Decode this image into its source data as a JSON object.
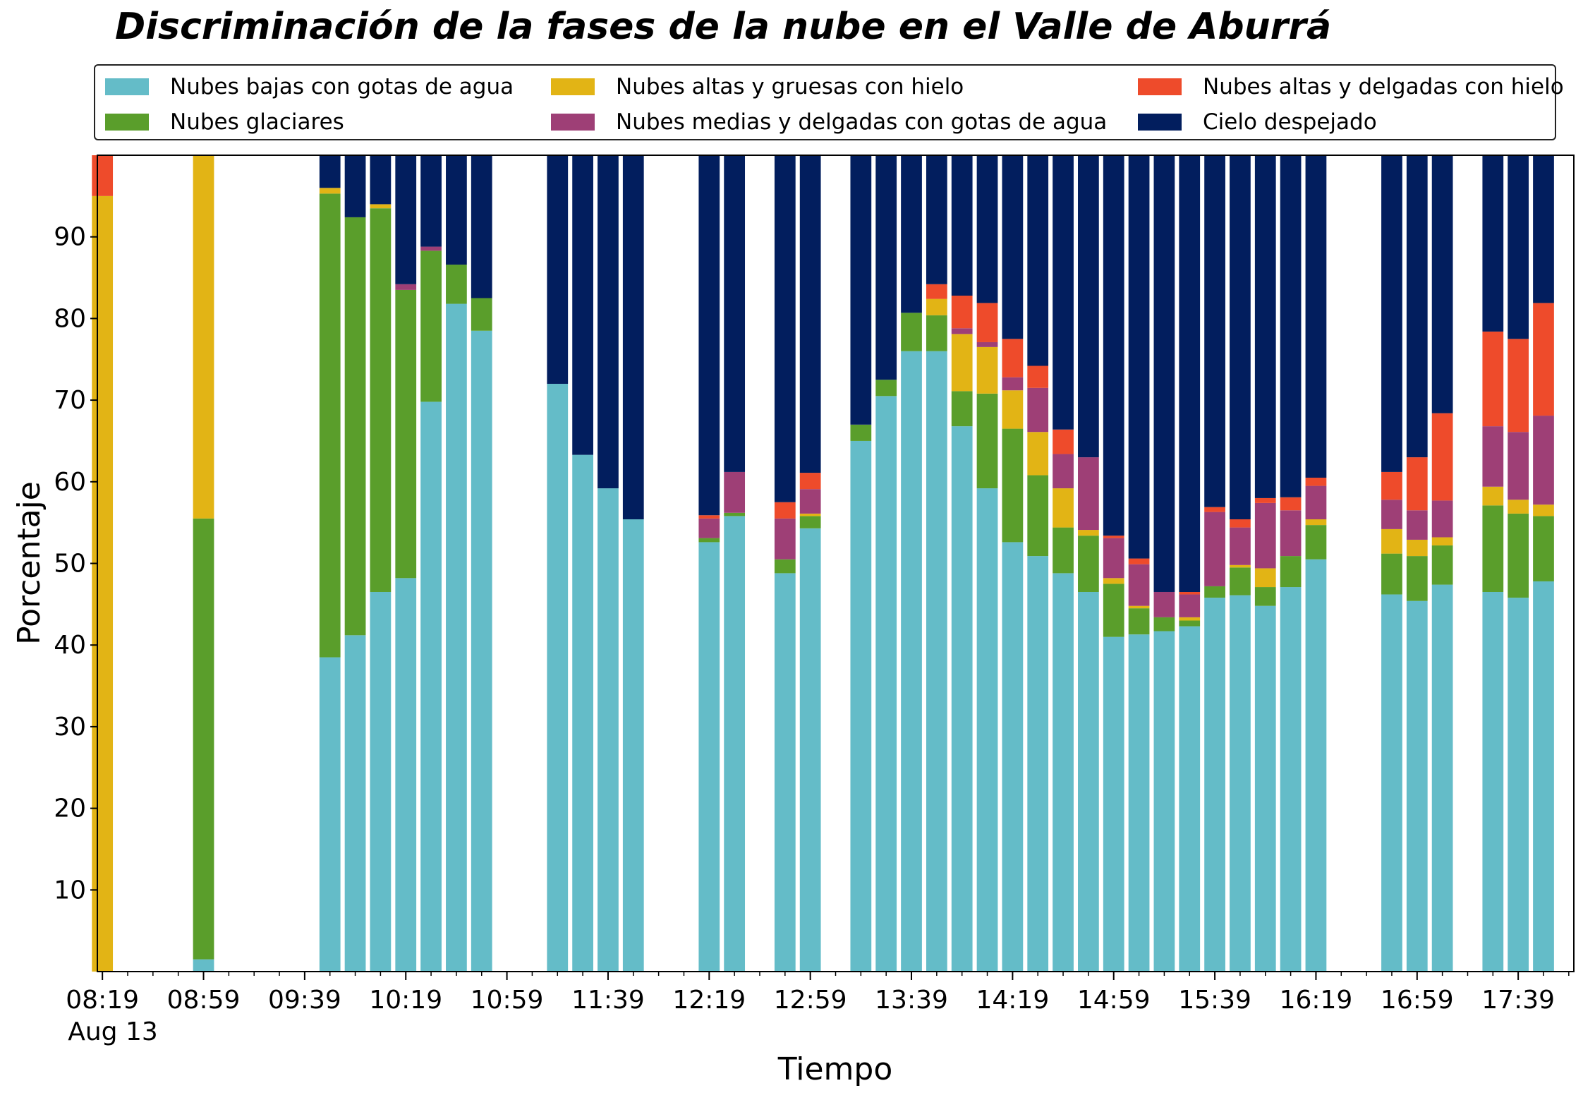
{
  "chart_data": {
    "type": "bar",
    "stacked": true,
    "title": "Discriminación de la fases de la nube en el Valle de Aburrá",
    "xlabel": "Tiempo",
    "ylabel": "Porcentaje",
    "ylim": [
      0,
      100
    ],
    "yticks": [
      10,
      20,
      30,
      40,
      50,
      60,
      70,
      80,
      90
    ],
    "xlim": [
      497,
      1081
    ],
    "xticks": [
      {
        "minute": 499,
        "label": "08:19"
      },
      {
        "minute": 539,
        "label": "08:59"
      },
      {
        "minute": 579,
        "label": "09:39"
      },
      {
        "minute": 619,
        "label": "10:19"
      },
      {
        "minute": 659,
        "label": "10:59"
      },
      {
        "minute": 699,
        "label": "11:39"
      },
      {
        "minute": 739,
        "label": "12:19"
      },
      {
        "minute": 779,
        "label": "12:59"
      },
      {
        "minute": 819,
        "label": "13:39"
      },
      {
        "minute": 859,
        "label": "14:19"
      },
      {
        "minute": 899,
        "label": "14:59"
      },
      {
        "minute": 939,
        "label": "15:39"
      },
      {
        "minute": 979,
        "label": "16:19"
      },
      {
        "minute": 1019,
        "label": "16:59"
      },
      {
        "minute": 1059,
        "label": "17:39"
      }
    ],
    "date_label": "Aug 13",
    "grid": false,
    "legend_position": "top",
    "series": [
      {
        "name": "Nubes bajas con gotas de agua",
        "color": "#64bcc8"
      },
      {
        "name": "Nubes glaciares",
        "color": "#5a9e2b"
      },
      {
        "name": "Nubes altas y gruesas con hielo",
        "color": "#e2b415"
      },
      {
        "name": "Nubes medias y delgadas con gotas de agua",
        "color": "#9e3f76"
      },
      {
        "name": "Nubes altas y delgadas con hielo",
        "color": "#ee4b2b"
      },
      {
        "name": "Cielo despejado",
        "color": "#021e5e"
      }
    ],
    "bars": [
      {
        "time": "08:19",
        "values": [
          0,
          0,
          95,
          0,
          5,
          0
        ]
      },
      {
        "time": "08:59",
        "values": [
          1.5,
          54,
          44.5,
          0,
          0.5,
          0
        ]
      },
      {
        "time": "09:49",
        "values": [
          38.5,
          56.8,
          0.7,
          0,
          0,
          4
        ]
      },
      {
        "time": "09:59",
        "values": [
          41.2,
          51.2,
          0,
          0,
          0,
          7.6
        ]
      },
      {
        "time": "10:09",
        "values": [
          46.5,
          47,
          0.5,
          0,
          0,
          6
        ]
      },
      {
        "time": "10:19",
        "values": [
          48.2,
          35.3,
          0,
          0.7,
          0,
          15.8
        ]
      },
      {
        "time": "10:29",
        "values": [
          69.8,
          18.5,
          0,
          0.5,
          0,
          11.2
        ]
      },
      {
        "time": "10:39",
        "values": [
          81.8,
          4.8,
          0,
          0,
          0,
          13.4
        ]
      },
      {
        "time": "10:49",
        "values": [
          78.5,
          4,
          0,
          0,
          0,
          17.5
        ]
      },
      {
        "time": "11:19",
        "values": [
          72,
          0,
          0,
          0,
          0,
          28
        ]
      },
      {
        "time": "11:29",
        "values": [
          63.3,
          0,
          0,
          0,
          0,
          36.7
        ]
      },
      {
        "time": "11:39",
        "values": [
          59.2,
          0,
          0,
          0,
          0,
          40.8
        ]
      },
      {
        "time": "11:49",
        "values": [
          55.4,
          0,
          0,
          0,
          0,
          44.6
        ]
      },
      {
        "time": "12:19",
        "values": [
          52.6,
          0.5,
          0,
          2.4,
          0.4,
          44.1
        ]
      },
      {
        "time": "12:29",
        "values": [
          55.8,
          0.4,
          0,
          5,
          0,
          38.8
        ]
      },
      {
        "time": "12:49",
        "values": [
          48.8,
          1.7,
          0,
          5,
          2,
          42.5
        ]
      },
      {
        "time": "12:59",
        "values": [
          54.3,
          1.5,
          0.3,
          3,
          2,
          38.9
        ]
      },
      {
        "time": "13:19",
        "values": [
          65,
          2,
          0,
          0,
          0,
          33
        ]
      },
      {
        "time": "13:29",
        "values": [
          70.5,
          2,
          0,
          0,
          0,
          27.5
        ]
      },
      {
        "time": "13:39",
        "values": [
          76,
          4.7,
          0,
          0,
          0,
          19.3
        ]
      },
      {
        "time": "13:49",
        "values": [
          76,
          4.4,
          2,
          0,
          1.8,
          15.8
        ]
      },
      {
        "time": "13:59",
        "values": [
          66.8,
          4.3,
          7,
          0.7,
          4,
          17.2
        ]
      },
      {
        "time": "14:09",
        "values": [
          59.2,
          11.6,
          5.7,
          0.6,
          4.8,
          18.1
        ]
      },
      {
        "time": "14:19",
        "values": [
          52.6,
          13.9,
          4.7,
          1.6,
          4.7,
          22.5
        ]
      },
      {
        "time": "14:29",
        "values": [
          50.9,
          9.9,
          5.3,
          5.4,
          2.7,
          25.8
        ]
      },
      {
        "time": "14:39",
        "values": [
          48.8,
          5.6,
          4.8,
          4.2,
          3,
          33.6
        ]
      },
      {
        "time": "14:49",
        "values": [
          46.5,
          6.9,
          0.7,
          8.9,
          0,
          37
        ]
      },
      {
        "time": "14:59",
        "values": [
          41,
          6.5,
          0.7,
          4.9,
          0.3,
          46.6
        ]
      },
      {
        "time": "15:09",
        "values": [
          41.3,
          3.2,
          0.3,
          5.1,
          0.7,
          49.4
        ]
      },
      {
        "time": "15:19",
        "values": [
          41.7,
          1.7,
          0,
          3.1,
          0,
          53.5
        ]
      },
      {
        "time": "15:29",
        "values": [
          42.3,
          0.7,
          0.4,
          2.8,
          0.3,
          53.5
        ]
      },
      {
        "time": "15:39",
        "values": [
          45.8,
          1.4,
          0,
          9.1,
          0.6,
          43.1
        ]
      },
      {
        "time": "15:49",
        "values": [
          46.1,
          3.4,
          0.3,
          4.6,
          1,
          44.6
        ]
      },
      {
        "time": "15:59",
        "values": [
          44.8,
          2.3,
          2.3,
          8,
          0.6,
          42
        ]
      },
      {
        "time": "16:09",
        "values": [
          47.1,
          3.8,
          0,
          5.6,
          1.6,
          41.9
        ]
      },
      {
        "time": "16:19",
        "values": [
          50.5,
          4.2,
          0.7,
          4.1,
          1,
          39.5
        ]
      },
      {
        "time": "16:49",
        "values": [
          46.2,
          5,
          3,
          3.6,
          3.4,
          38.8
        ]
      },
      {
        "time": "16:59",
        "values": [
          45.4,
          5.5,
          2,
          3.6,
          6.5,
          37
        ]
      },
      {
        "time": "17:09",
        "values": [
          47.4,
          4.8,
          1,
          4.5,
          10.7,
          31.6
        ]
      },
      {
        "time": "17:29",
        "values": [
          46.5,
          10.6,
          2.3,
          7.4,
          11.6,
          21.6
        ]
      },
      {
        "time": "17:39",
        "values": [
          45.8,
          10.3,
          1.7,
          8.3,
          11.4,
          22.5
        ]
      },
      {
        "time": "17:49",
        "values": [
          47.8,
          8,
          1.4,
          10.9,
          13.8,
          18.1
        ]
      }
    ]
  }
}
